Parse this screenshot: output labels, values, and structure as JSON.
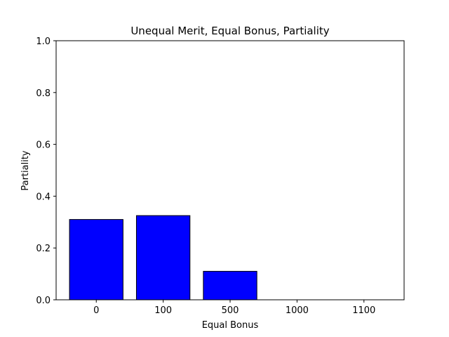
{
  "chart_data": {
    "type": "bar",
    "title": "Unequal Merit, Equal Bonus, Partiality",
    "xlabel": "Equal Bonus",
    "ylabel": "Partiality",
    "categories": [
      "0",
      "100",
      "500",
      "1000",
      "1100"
    ],
    "values": [
      0.31,
      0.325,
      0.11,
      0.0,
      0.0
    ],
    "ylim": [
      0,
      1.0
    ],
    "yticks": [
      "0.0",
      "0.2",
      "0.4",
      "0.6",
      "0.8",
      "1.0"
    ],
    "bar_color": "#0000ff",
    "bar_edge_color": "#000000",
    "grid": false
  }
}
